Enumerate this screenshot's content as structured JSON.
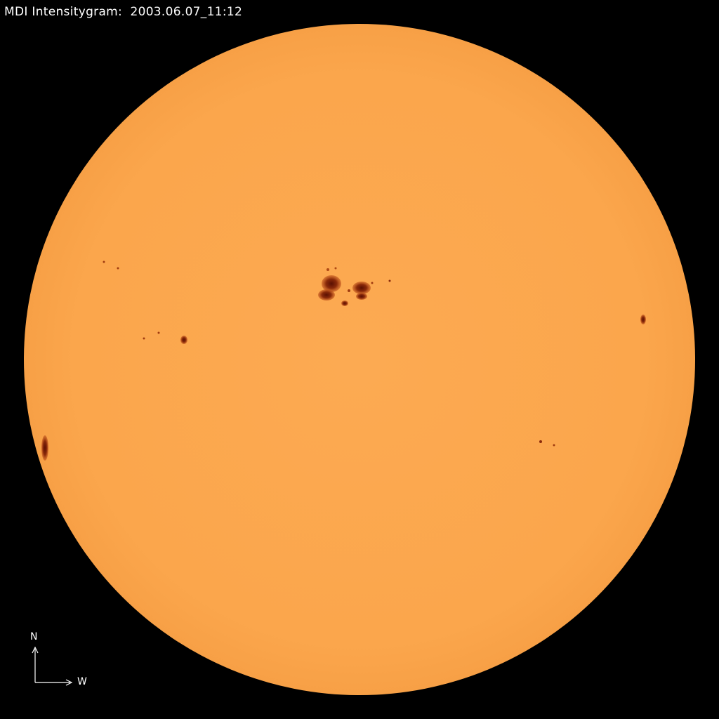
{
  "title": "MDI Intensitygram:  2003.06.07_11:12",
  "orientation": {
    "north_label": "N",
    "west_label": "W"
  },
  "colors": {
    "background": "#000000",
    "disk": "#fca84e",
    "spot": "#7a1a05",
    "text": "#ffffff"
  }
}
